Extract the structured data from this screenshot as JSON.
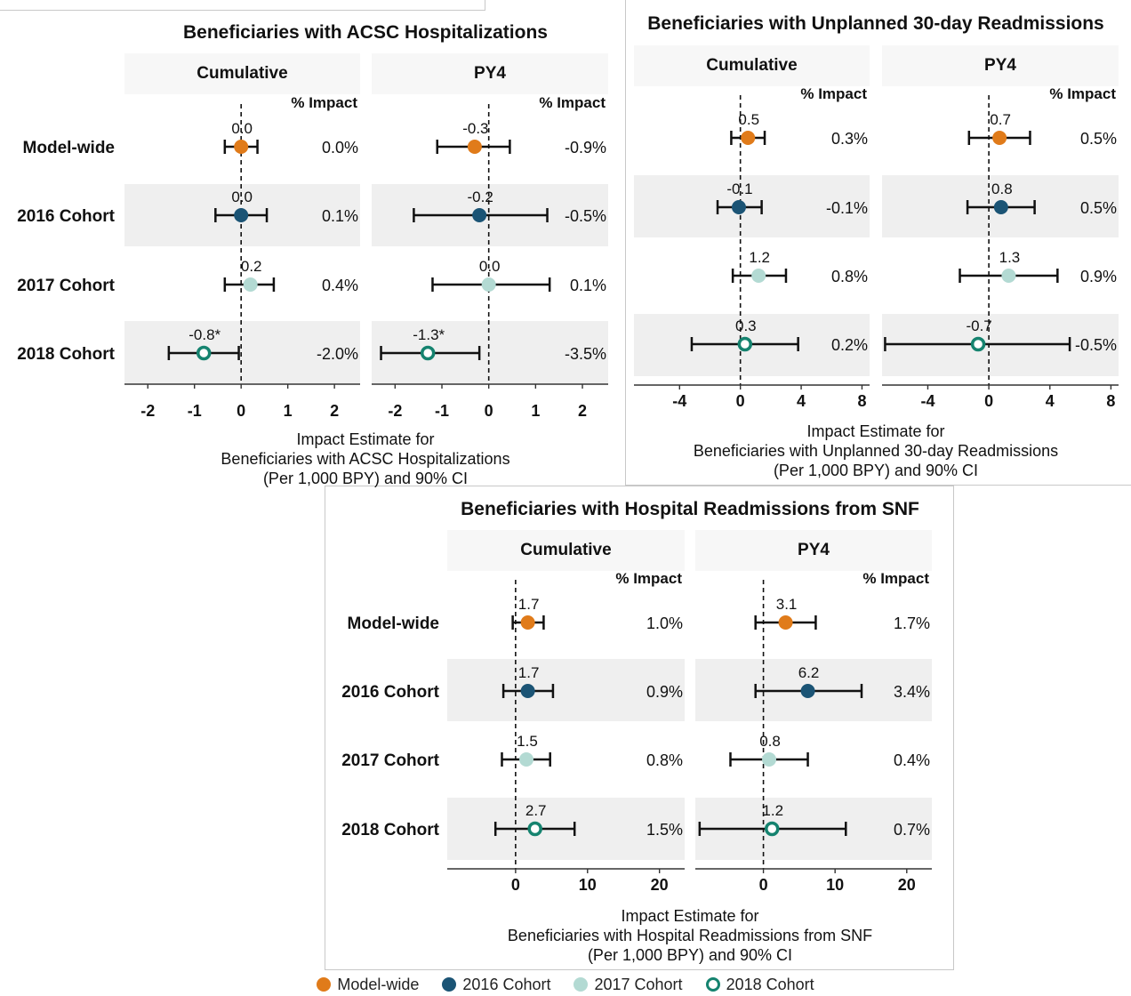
{
  "colors": {
    "model_wide": "#E07B1A",
    "c2016": "#1B5475",
    "c2017": "#B3DAD3",
    "c2018_stroke": "#15836F",
    "c2018_fill": "#FFFFFF"
  },
  "legend": [
    {
      "label": "Model-wide",
      "key": "model_wide"
    },
    {
      "label": "2016 Cohort",
      "key": "c2016"
    },
    {
      "label": "2017 Cohort",
      "key": "c2017"
    },
    {
      "label": "2018 Cohort",
      "key": "c2018"
    }
  ],
  "chart_data": [
    {
      "type": "forest",
      "title": "Beneficiaries with ACSC Hospitalizations",
      "xlabel": [
        "Impact Estimate for",
        "Beneficiaries with ACSC Hospitalizations",
        "(Per 1,000 BPY) and 90% CI"
      ],
      "rows": [
        "Model-wide",
        "2016 Cohort",
        "2017 Cohort",
        "2018 Cohort"
      ],
      "impact_header": "% Impact",
      "panels": [
        {
          "name": "Cumulative",
          "xlim": [
            -2.5,
            2.55
          ],
          "ticks": [
            -2,
            -1,
            0,
            1,
            2
          ],
          "points": [
            {
              "row": "Model-wide",
              "est": 0.0,
              "low": -0.35,
              "high": 0.35,
              "label": "0.0",
              "impact": "0.0%"
            },
            {
              "row": "2016 Cohort",
              "est": 0.0,
              "low": -0.55,
              "high": 0.55,
              "label": "0.0",
              "impact": "0.1%"
            },
            {
              "row": "2017 Cohort",
              "est": 0.2,
              "low": -0.35,
              "high": 0.7,
              "label": "0.2",
              "impact": "0.4%"
            },
            {
              "row": "2018 Cohort",
              "est": -0.8,
              "low": -1.55,
              "high": -0.05,
              "label": "-0.8*",
              "impact": "-2.0%"
            }
          ]
        },
        {
          "name": "PY4",
          "xlim": [
            -2.5,
            2.55
          ],
          "ticks": [
            -2,
            -1,
            0,
            1,
            2
          ],
          "points": [
            {
              "row": "Model-wide",
              "est": -0.3,
              "low": -1.1,
              "high": 0.45,
              "label": "-0.3",
              "impact": "-0.9%"
            },
            {
              "row": "2016 Cohort",
              "est": -0.2,
              "low": -1.6,
              "high": 1.25,
              "label": "-0.2",
              "impact": "-0.5%"
            },
            {
              "row": "2017 Cohort",
              "est": 0.0,
              "low": -1.2,
              "high": 1.3,
              "label": "0.0",
              "impact": "0.1%"
            },
            {
              "row": "2018 Cohort",
              "est": -1.3,
              "low": -2.3,
              "high": -0.2,
              "label": "-1.3*",
              "impact": "-3.5%"
            }
          ]
        }
      ]
    },
    {
      "type": "forest",
      "title": "Beneficiaries with Unplanned 30-day Readmissions",
      "xlabel": [
        "Impact Estimate for",
        "Beneficiaries with Unplanned 30-day Readmissions",
        "(Per 1,000 BPY) and 90% CI"
      ],
      "rows": [
        "Model-wide",
        "2016 Cohort",
        "2017 Cohort",
        "2018 Cohort"
      ],
      "impact_header": "% Impact",
      "panels": [
        {
          "name": "Cumulative",
          "xlim": [
            -7,
            8.5
          ],
          "ticks": [
            -4,
            0,
            4,
            8
          ],
          "points": [
            {
              "row": "Model-wide",
              "est": 0.5,
              "low": -0.6,
              "high": 1.6,
              "label": "0.5",
              "impact": "0.3%"
            },
            {
              "row": "2016 Cohort",
              "est": -0.1,
              "low": -1.5,
              "high": 1.4,
              "label": "-0.1",
              "impact": "-0.1%"
            },
            {
              "row": "2017 Cohort",
              "est": 1.2,
              "low": -0.5,
              "high": 3.0,
              "label": "1.2",
              "impact": "0.8%"
            },
            {
              "row": "2018 Cohort",
              "est": 0.3,
              "low": -3.2,
              "high": 3.8,
              "label": "0.3",
              "impact": "0.2%"
            }
          ]
        },
        {
          "name": "PY4",
          "xlim": [
            -7,
            8.5
          ],
          "ticks": [
            -4,
            0,
            4,
            8
          ],
          "points": [
            {
              "row": "Model-wide",
              "est": 0.7,
              "low": -1.3,
              "high": 2.7,
              "label": "0.7",
              "impact": "0.5%"
            },
            {
              "row": "2016 Cohort",
              "est": 0.8,
              "low": -1.4,
              "high": 3.0,
              "label": "0.8",
              "impact": "0.5%"
            },
            {
              "row": "2017 Cohort",
              "est": 1.3,
              "low": -1.9,
              "high": 4.5,
              "label": "1.3",
              "impact": "0.9%"
            },
            {
              "row": "2018 Cohort",
              "est": -0.7,
              "low": -6.8,
              "high": 5.3,
              "label": "-0.7",
              "impact": "-0.5%"
            }
          ]
        }
      ]
    },
    {
      "type": "forest",
      "title": "Beneficiaries with Hospital Readmissions from SNF",
      "xlabel": [
        "Impact Estimate for",
        "Beneficiaries with Hospital Readmissions from SNF",
        "(Per 1,000 BPY) and 90% CI"
      ],
      "rows": [
        "Model-wide",
        "2016 Cohort",
        "2017 Cohort",
        "2018 Cohort"
      ],
      "impact_header": "% Impact",
      "panels": [
        {
          "name": "Cumulative",
          "xlim": [
            -9.5,
            23.5
          ],
          "ticks": [
            0,
            10,
            20
          ],
          "points": [
            {
              "row": "Model-wide",
              "est": 1.7,
              "low": -0.4,
              "high": 3.9,
              "label": "1.7",
              "impact": "1.0%"
            },
            {
              "row": "2016 Cohort",
              "est": 1.7,
              "low": -1.7,
              "high": 5.2,
              "label": "1.7",
              "impact": "0.9%"
            },
            {
              "row": "2017 Cohort",
              "est": 1.5,
              "low": -1.9,
              "high": 4.8,
              "label": "1.5",
              "impact": "0.8%"
            },
            {
              "row": "2018 Cohort",
              "est": 2.7,
              "low": -2.8,
              "high": 8.2,
              "label": "2.7",
              "impact": "1.5%"
            }
          ]
        },
        {
          "name": "PY4",
          "xlim": [
            -9.5,
            23.5
          ],
          "ticks": [
            0,
            10,
            20
          ],
          "points": [
            {
              "row": "Model-wide",
              "est": 3.1,
              "low": -1.1,
              "high": 7.3,
              "label": "3.1",
              "impact": "1.7%"
            },
            {
              "row": "2016 Cohort",
              "est": 6.2,
              "low": -1.1,
              "high": 13.7,
              "label": "6.2",
              "impact": "3.4%"
            },
            {
              "row": "2017 Cohort",
              "est": 0.8,
              "low": -4.6,
              "high": 6.2,
              "label": "0.8",
              "impact": "0.4%"
            },
            {
              "row": "2018 Cohort",
              "est": 1.2,
              "low": -8.9,
              "high": 11.5,
              "label": "1.2",
              "impact": "0.7%"
            }
          ]
        }
      ]
    }
  ]
}
